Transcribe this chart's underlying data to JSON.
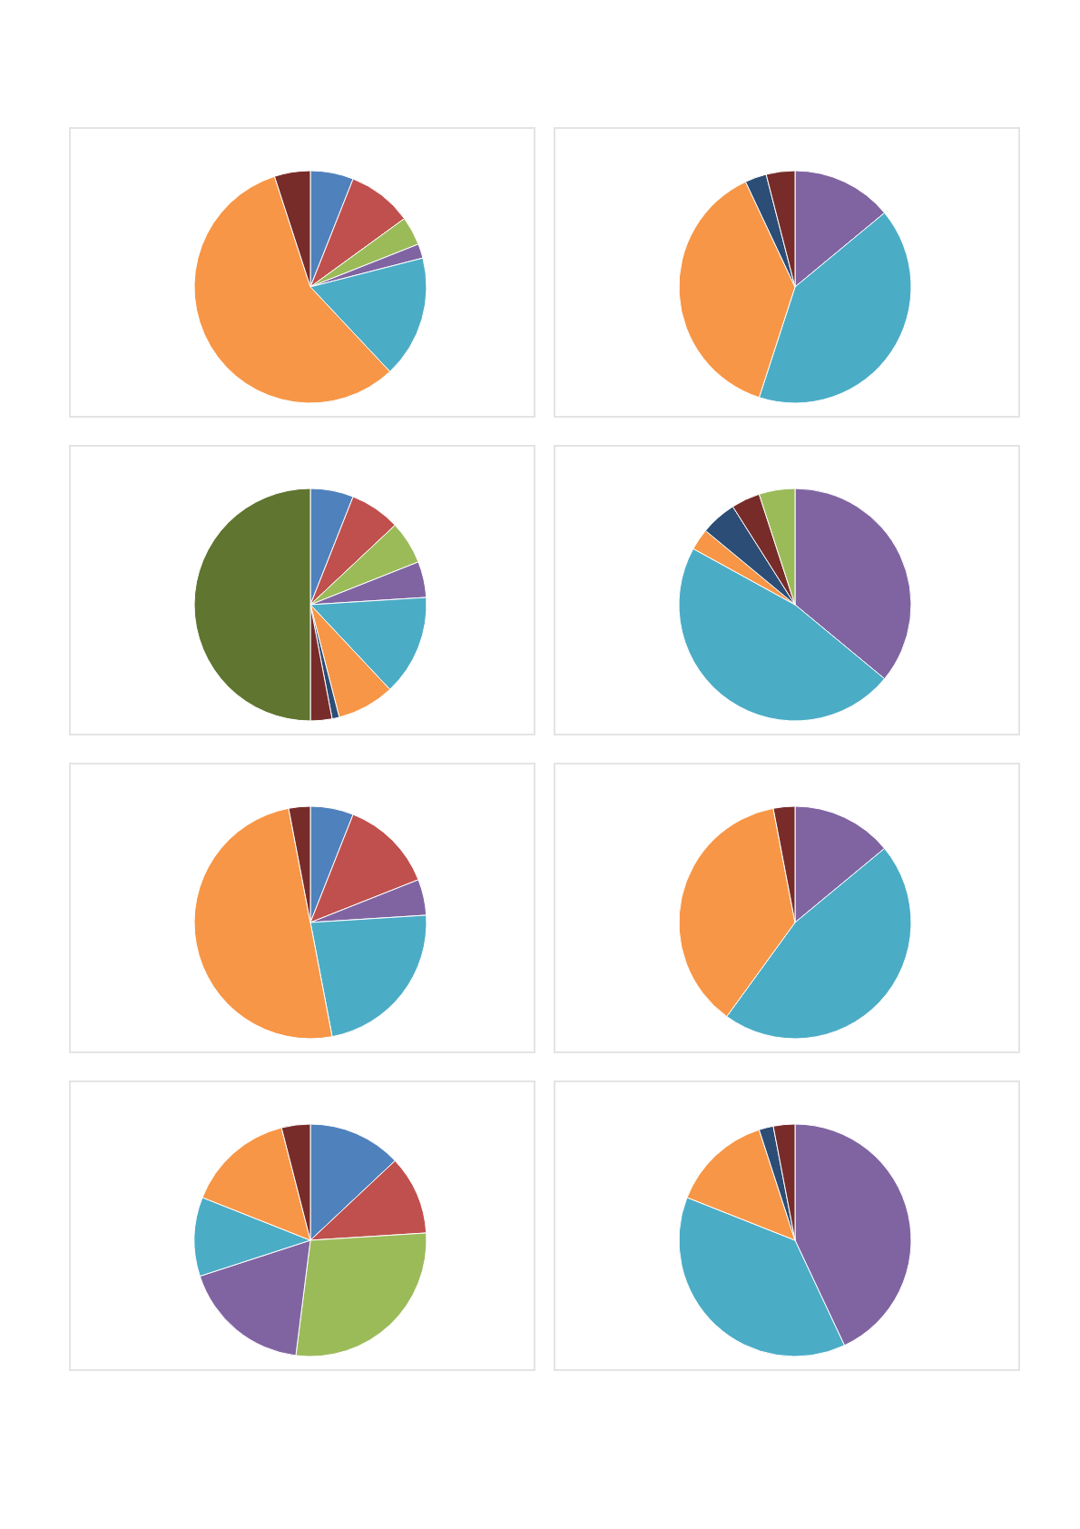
{
  "chart_data": [
    {
      "type": "pie",
      "categories": [
        null,
        null,
        null,
        null,
        null,
        null,
        null
      ],
      "values": [
        6,
        9,
        4,
        2,
        17,
        57,
        5
      ],
      "colors": [
        "#4f81bd",
        "#c0504d",
        "#9bbb59",
        "#8064a2",
        "#4bacc6",
        "#f79646",
        "#772c2a"
      ]
    },
    {
      "type": "pie",
      "categories": [
        null,
        null,
        null,
        null,
        null
      ],
      "values": [
        14,
        41,
        38,
        3,
        4
      ],
      "colors": [
        "#8064a2",
        "#4bacc6",
        "#f79646",
        "#2c4d75",
        "#772c2a"
      ]
    },
    {
      "type": "pie",
      "categories": [
        null,
        null,
        null,
        null,
        null,
        null,
        null,
        null,
        null
      ],
      "values": [
        6,
        7,
        6,
        5,
        14,
        8,
        1,
        3,
        50
      ],
      "colors": [
        "#4f81bd",
        "#c0504d",
        "#9bbb59",
        "#8064a2",
        "#4bacc6",
        "#f79646",
        "#2c4d75",
        "#772c2a",
        "#5f7530"
      ]
    },
    {
      "type": "pie",
      "categories": [
        null,
        null,
        null,
        null,
        null,
        null
      ],
      "values": [
        36,
        47,
        3,
        5,
        4,
        5
      ],
      "colors": [
        "#8064a2",
        "#4bacc6",
        "#f79646",
        "#2c4d75",
        "#772c2a",
        "#9bbb59"
      ]
    },
    {
      "type": "pie",
      "categories": [
        null,
        null,
        null,
        null,
        null,
        null
      ],
      "values": [
        6,
        13,
        5,
        23,
        50,
        3
      ],
      "colors": [
        "#4f81bd",
        "#c0504d",
        "#8064a2",
        "#4bacc6",
        "#f79646",
        "#772c2a"
      ]
    },
    {
      "type": "pie",
      "categories": [
        null,
        null,
        null,
        null
      ],
      "values": [
        14,
        46,
        37,
        3
      ],
      "colors": [
        "#8064a2",
        "#4bacc6",
        "#f79646",
        "#772c2a"
      ]
    },
    {
      "type": "pie",
      "categories": [
        null,
        null,
        null,
        null,
        null,
        null,
        null
      ],
      "values": [
        13,
        11,
        28,
        18,
        11,
        15,
        4
      ],
      "colors": [
        "#4f81bd",
        "#c0504d",
        "#9bbb59",
        "#8064a2",
        "#4bacc6",
        "#f79646",
        "#772c2a"
      ]
    },
    {
      "type": "pie",
      "categories": [
        null,
        null,
        null,
        null,
        null
      ],
      "values": [
        43,
        38,
        14,
        2,
        3
      ],
      "colors": [
        "#8064a2",
        "#4bacc6",
        "#f79646",
        "#2c4d75",
        "#772c2a"
      ]
    }
  ]
}
